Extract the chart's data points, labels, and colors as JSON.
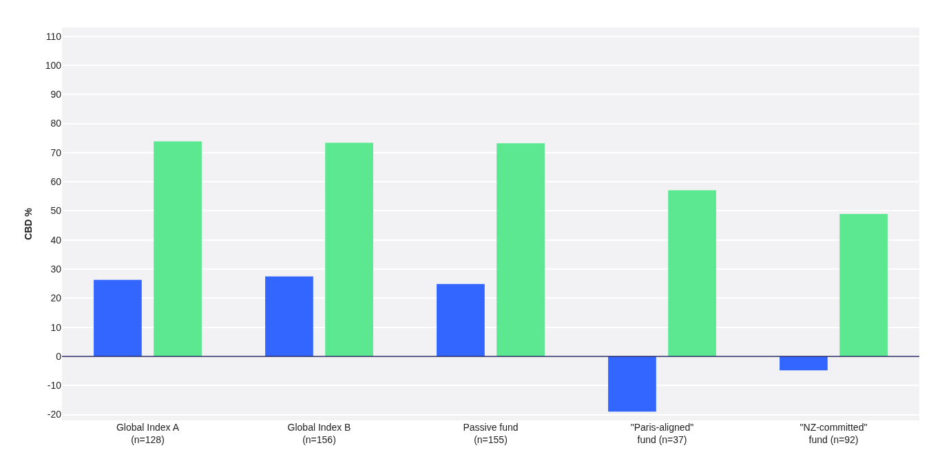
{
  "chart_data": {
    "type": "bar",
    "ylabel": "CBD %",
    "categories": [
      "Global Index A\n(n=128)",
      "Global Index B\n(n=156)",
      "Passive fund\n(n=155)",
      "\"Paris-aligned\"\nfund (n=37)",
      "\"NZ-committed\"\nfund (n=92)"
    ],
    "series": [
      {
        "color": "#3366ff",
        "values": [
          26.3,
          27.5,
          24.9,
          -19.0,
          -4.8
        ]
      },
      {
        "color": "#5ce890",
        "values": [
          73.9,
          73.4,
          73.2,
          57.1,
          48.9
        ]
      }
    ],
    "ylim": [
      -22,
      113
    ],
    "yticks": [
      -20,
      -10,
      0,
      10,
      20,
      30,
      40,
      50,
      60,
      70,
      80,
      90,
      100,
      110
    ],
    "grid": "y",
    "ref_lines": [
      {
        "axis": "y",
        "value": 0,
        "color": "#2a2a66"
      }
    ]
  }
}
